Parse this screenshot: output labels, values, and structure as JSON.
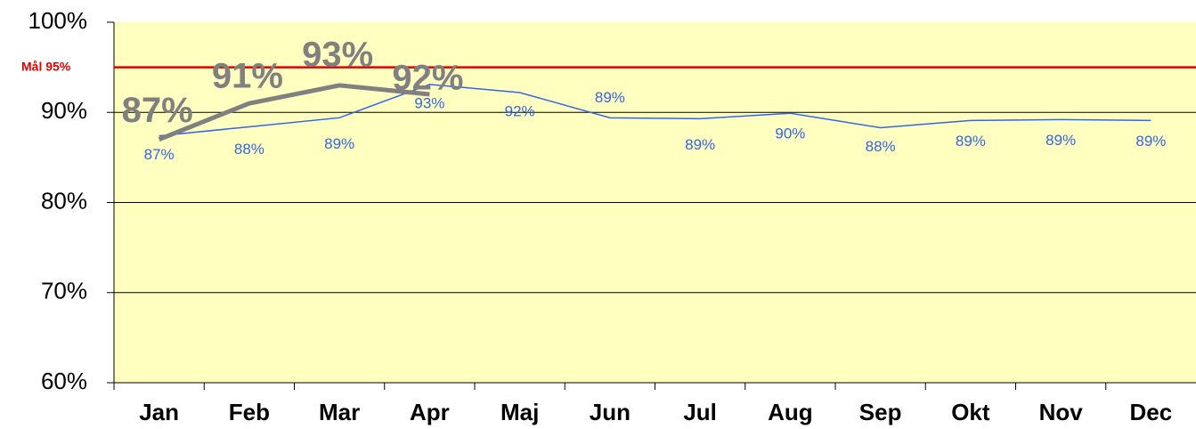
{
  "chart_data": {
    "type": "line",
    "categories": [
      "Jan",
      "Feb",
      "Mar",
      "Apr",
      "Maj",
      "Jun",
      "Jul",
      "Aug",
      "Sep",
      "Okt",
      "Nov",
      "Dec"
    ],
    "series": [
      {
        "color": "#3366e0",
        "values": [
          87.4,
          88.4,
          89.4,
          93.1,
          92.2,
          89.4,
          89.3,
          89.9,
          88.3,
          89.1,
          89.2,
          89.1
        ],
        "value_labels": [
          "87%",
          "88%",
          "89%",
          "93%",
          "92%",
          "89%",
          "89%",
          "90%",
          "88%",
          "89%",
          "89%",
          "89%"
        ]
      },
      {
        "color": "#808080",
        "values": [
          87,
          91,
          93,
          92,
          null,
          null,
          null,
          null,
          null,
          null,
          null,
          null
        ],
        "value_labels": [
          "87%",
          "91%",
          "93%",
          "92%",
          null,
          null,
          null,
          null,
          null,
          null,
          null,
          null
        ]
      }
    ],
    "target": {
      "value": 95,
      "label": "Mål 95%",
      "color": "#e00000"
    },
    "ylim": [
      60,
      100
    ],
    "yticks": [
      {
        "value": 60,
        "label": "60%"
      },
      {
        "value": 70,
        "label": "70%"
      },
      {
        "value": 80,
        "label": "80%"
      },
      {
        "value": 90,
        "label": "90%"
      },
      {
        "value": 100,
        "label": "100%"
      }
    ],
    "grid": true,
    "background": "#ffffc0"
  }
}
